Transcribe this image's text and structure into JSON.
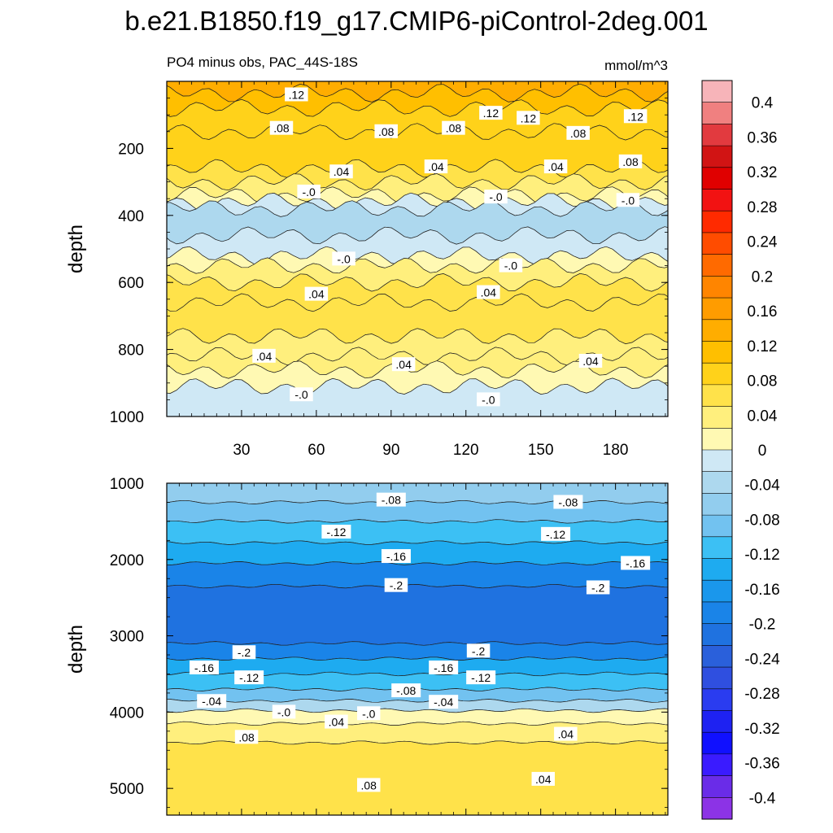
{
  "title": "b.e21.B1850.f19_g17.CMIP6-piControl-2deg.001",
  "chart_data": {
    "type": "heatmap",
    "colorbar": {
      "levels": [
        0.4,
        0.36,
        0.32,
        0.28,
        0.24,
        0.2,
        0.16,
        0.12,
        0.08,
        0.04,
        0,
        -0.04,
        -0.08,
        -0.12,
        -0.16,
        -0.2,
        -0.24,
        -0.28,
        -0.32,
        -0.36,
        -0.4
      ],
      "labels": [
        "0.4",
        "0.36",
        "0.32",
        "0.28",
        "0.24",
        "0.2",
        "0.16",
        "0.12",
        "0.08",
        "0.04",
        "0",
        "-0.04",
        "-0.08",
        "-0.12",
        "-0.16",
        "-0.2",
        "-0.24",
        "-0.28",
        "-0.32",
        "-0.36",
        "-0.4"
      ],
      "colors": [
        "#f7b4b9",
        "#f08080",
        "#e23a3f",
        "#d11414",
        "#e00000",
        "#f21212",
        "#ff2a00",
        "#ff4c00",
        "#ff6a00",
        "#ff8500",
        "#ff9c00",
        "#ffad00",
        "#ffbf00",
        "#ffd21a",
        "#ffe24a",
        "#ffef7d",
        "#fff9b3",
        "#cfe8f5",
        "#add8ee",
        "#92cdee",
        "#72c2f0",
        "#3cc0f4",
        "#1eabf0",
        "#1a97ec",
        "#1a84e8",
        "#1f72e0",
        "#2a60db",
        "#2f4fe0",
        "#2a3cf0",
        "#1e22f2",
        "#1010ff",
        "#3a1bff",
        "#6a2ce8",
        "#8c33e6"
      ]
    },
    "panels": [
      {
        "subtitle_left": "PO4 minus obs, PAC_44S-18S",
        "subtitle_right": "mmol/m^3",
        "ylabel": "depth",
        "ylim": [
          0,
          1000
        ],
        "yticks": [
          "200",
          "400",
          "600",
          "800",
          "1000"
        ],
        "xlim": [
          0,
          201
        ],
        "xticks": [
          "30",
          "60",
          "90",
          "120",
          "150",
          "180"
        ],
        "bands": [
          {
            "d0": 0,
            "d1": 35,
            "v": 0.14
          },
          {
            "d0": 35,
            "d1": 80,
            "v": 0.12
          },
          {
            "d0": 80,
            "d1": 150,
            "v": 0.1
          },
          {
            "d0": 150,
            "d1": 260,
            "v": 0.08
          },
          {
            "d0": 260,
            "d1": 300,
            "v": 0.06
          },
          {
            "d0": 300,
            "d1": 340,
            "v": 0.04
          },
          {
            "d0": 340,
            "d1": 360,
            "v": 0.02
          },
          {
            "d0": 360,
            "d1": 380,
            "v": -0.02
          },
          {
            "d0": 380,
            "d1": 460,
            "v": -0.04
          },
          {
            "d0": 460,
            "d1": 520,
            "v": -0.02
          },
          {
            "d0": 520,
            "d1": 550,
            "v": 0.02
          },
          {
            "d0": 550,
            "d1": 600,
            "v": 0.04
          },
          {
            "d0": 600,
            "d1": 660,
            "v": 0.06
          },
          {
            "d0": 660,
            "d1": 760,
            "v": 0.06
          },
          {
            "d0": 760,
            "d1": 820,
            "v": 0.04
          },
          {
            "d0": 820,
            "d1": 860,
            "v": 0.04
          },
          {
            "d0": 860,
            "d1": 910,
            "v": 0.02
          },
          {
            "d0": 910,
            "d1": 1000,
            "v": -0.02
          }
        ],
        "contour_labels": [
          {
            "x": 52,
            "d": 40,
            "t": ".12"
          },
          {
            "x": 46,
            "d": 140,
            "t": ".08"
          },
          {
            "x": 88,
            "d": 150,
            "t": ".08"
          },
          {
            "x": 115,
            "d": 140,
            "t": ".08"
          },
          {
            "x": 130,
            "d": 95,
            "t": ".12"
          },
          {
            "x": 145,
            "d": 110,
            "t": ".12"
          },
          {
            "x": 165,
            "d": 155,
            "t": ".08"
          },
          {
            "x": 188,
            "d": 105,
            "t": ".12"
          },
          {
            "x": 186,
            "d": 240,
            "t": ".08"
          },
          {
            "x": 70,
            "d": 270,
            "t": ".04"
          },
          {
            "x": 108,
            "d": 255,
            "t": ".04"
          },
          {
            "x": 156,
            "d": 255,
            "t": ".04"
          },
          {
            "x": 57,
            "d": 330,
            "t": "-.0"
          },
          {
            "x": 132,
            "d": 345,
            "t": "-.0"
          },
          {
            "x": 185,
            "d": 355,
            "t": "-.0"
          },
          {
            "x": 71,
            "d": 530,
            "t": "-.0"
          },
          {
            "x": 138,
            "d": 550,
            "t": "-.0"
          },
          {
            "x": 60,
            "d": 635,
            "t": ".04"
          },
          {
            "x": 129,
            "d": 630,
            "t": ".04"
          },
          {
            "x": 39,
            "d": 820,
            "t": ".04"
          },
          {
            "x": 95,
            "d": 845,
            "t": ".04"
          },
          {
            "x": 170,
            "d": 835,
            "t": ".04"
          },
          {
            "x": 54,
            "d": 935,
            "t": "-.0"
          },
          {
            "x": 129,
            "d": 950,
            "t": "-.0"
          }
        ]
      },
      {
        "ylabel": "depth",
        "ylim": [
          1000,
          5350
        ],
        "yticks": [
          "1000",
          "2000",
          "3000",
          "4000",
          "5000"
        ],
        "xlim": [
          0,
          201
        ],
        "bands": [
          {
            "d0": 1000,
            "d1": 1250,
            "v": -0.06
          },
          {
            "d0": 1250,
            "d1": 1500,
            "v": -0.09
          },
          {
            "d0": 1500,
            "d1": 1780,
            "v": -0.12
          },
          {
            "d0": 1780,
            "d1": 2050,
            "v": -0.15
          },
          {
            "d0": 2050,
            "d1": 2350,
            "v": -0.18
          },
          {
            "d0": 2350,
            "d1": 3100,
            "v": -0.22
          },
          {
            "d0": 3100,
            "d1": 3300,
            "v": -0.18
          },
          {
            "d0": 3300,
            "d1": 3500,
            "v": -0.15
          },
          {
            "d0": 3500,
            "d1": 3700,
            "v": -0.12
          },
          {
            "d0": 3700,
            "d1": 3850,
            "v": -0.08
          },
          {
            "d0": 3850,
            "d1": 3980,
            "v": -0.03
          },
          {
            "d0": 3980,
            "d1": 4150,
            "v": 0.02
          },
          {
            "d0": 4150,
            "d1": 4400,
            "v": 0.04
          },
          {
            "d0": 4400,
            "d1": 5350,
            "v": 0.06
          }
        ],
        "contour_labels": [
          {
            "x": 90,
            "d": 1220,
            "t": "-.08"
          },
          {
            "x": 161,
            "d": 1250,
            "t": "-.08"
          },
          {
            "x": 68,
            "d": 1640,
            "t": "-.12"
          },
          {
            "x": 156,
            "d": 1670,
            "t": "-.12"
          },
          {
            "x": 92,
            "d": 1960,
            "t": "-.16"
          },
          {
            "x": 188,
            "d": 2050,
            "t": "-.16"
          },
          {
            "x": 92,
            "d": 2340,
            "t": "-.2"
          },
          {
            "x": 173,
            "d": 2370,
            "t": "-.2"
          },
          {
            "x": 31,
            "d": 3220,
            "t": "-.2"
          },
          {
            "x": 125,
            "d": 3200,
            "t": "-.2"
          },
          {
            "x": 15,
            "d": 3420,
            "t": "-.16"
          },
          {
            "x": 111,
            "d": 3420,
            "t": "-.16"
          },
          {
            "x": 33,
            "d": 3550,
            "t": "-.12"
          },
          {
            "x": 126,
            "d": 3550,
            "t": "-.12"
          },
          {
            "x": 96,
            "d": 3720,
            "t": "-.08"
          },
          {
            "x": 18,
            "d": 3860,
            "t": "-.04"
          },
          {
            "x": 111,
            "d": 3870,
            "t": "-.04"
          },
          {
            "x": 47,
            "d": 4000,
            "t": "-.0"
          },
          {
            "x": 81,
            "d": 4020,
            "t": "-.0"
          },
          {
            "x": 68,
            "d": 4130,
            "t": ".04"
          },
          {
            "x": 32,
            "d": 4330,
            "t": ".08"
          },
          {
            "x": 160,
            "d": 4290,
            "t": ".04"
          },
          {
            "x": 81,
            "d": 4960,
            "t": ".08"
          },
          {
            "x": 151,
            "d": 4880,
            "t": ".04"
          }
        ]
      }
    ]
  }
}
